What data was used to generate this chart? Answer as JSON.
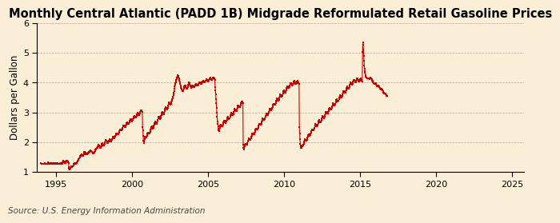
{
  "title": "Monthly Central Atlantic (PADD 1B) Midgrade Reformulated Retail Gasoline Prices",
  "ylabel": "Dollars per Gallon",
  "source": "Source: U.S. Energy Information Administration",
  "background_color": "#faefd6",
  "line_color": "#cc0000",
  "marker": "s",
  "markersize": 1.8,
  "linewidth": 0.8,
  "ylim": [
    1,
    6
  ],
  "yticks": [
    1,
    2,
    3,
    4,
    5,
    6
  ],
  "xlim_start": 1993.75,
  "xlim_end": 2025.75,
  "xticks": [
    1995,
    2000,
    2005,
    2010,
    2015,
    2020,
    2025
  ],
  "title_fontsize": 10.5,
  "ylabel_fontsize": 8.5,
  "source_fontsize": 7.5,
  "tick_fontsize": 8,
  "prices": [
    1.29,
    1.3,
    1.28,
    1.27,
    1.26,
    1.28,
    1.27,
    1.26,
    1.28,
    1.28,
    1.27,
    1.26,
    1.26,
    1.27,
    1.29,
    1.28,
    1.27,
    1.26,
    1.27,
    1.28,
    1.28,
    1.27,
    1.26,
    1.27,
    1.28,
    1.3,
    1.32,
    1.31,
    1.29,
    1.28,
    1.3,
    1.31,
    1.3,
    1.29,
    1.28,
    1.27,
    1.28,
    1.29,
    1.28,
    1.27,
    1.27,
    1.28,
    1.29,
    1.3,
    1.29,
    1.28,
    1.27,
    1.26,
    1.28,
    1.3,
    1.3,
    1.29,
    1.28,
    1.28,
    1.3,
    1.31,
    1.3,
    1.29,
    1.28,
    1.27,
    1.27,
    1.27,
    1.26,
    1.27,
    1.27,
    1.28,
    1.29,
    1.3,
    1.29,
    1.28,
    1.27,
    1.26,
    1.27,
    1.28,
    1.3,
    1.32,
    1.34,
    1.36,
    1.37,
    1.35,
    1.33,
    1.32,
    1.31,
    1.3,
    1.31,
    1.32,
    1.35,
    1.37,
    1.38,
    1.37,
    1.36,
    1.35,
    1.34,
    1.33,
    1.32,
    1.31,
    1.15,
    1.12,
    1.1,
    1.09,
    1.1,
    1.12,
    1.14,
    1.16,
    1.18,
    1.17,
    1.16,
    1.15,
    1.16,
    1.18,
    1.2,
    1.22,
    1.24,
    1.26,
    1.28,
    1.29,
    1.3,
    1.3,
    1.29,
    1.28,
    1.28,
    1.29,
    1.3,
    1.31,
    1.32,
    1.34,
    1.36,
    1.38,
    1.4,
    1.42,
    1.44,
    1.45,
    1.47,
    1.49,
    1.51,
    1.53,
    1.55,
    1.56,
    1.57,
    1.58,
    1.57,
    1.55,
    1.54,
    1.53,
    1.54,
    1.55,
    1.57,
    1.6,
    1.63,
    1.66,
    1.68,
    1.66,
    1.64,
    1.62,
    1.6,
    1.58,
    1.58,
    1.59,
    1.6,
    1.61,
    1.62,
    1.63,
    1.64,
    1.65,
    1.66,
    1.67,
    1.68,
    1.69,
    1.7,
    1.71,
    1.72,
    1.71,
    1.7,
    1.69,
    1.68,
    1.67,
    1.66,
    1.65,
    1.64,
    1.63,
    1.63,
    1.63,
    1.64,
    1.66,
    1.68,
    1.7,
    1.72,
    1.74,
    1.76,
    1.78,
    1.79,
    1.8,
    1.81,
    1.82,
    1.84,
    1.86,
    1.88,
    1.9,
    1.91,
    1.9,
    1.88,
    1.86,
    1.84,
    1.82,
    1.82,
    1.83,
    1.85,
    1.87,
    1.9,
    1.93,
    1.96,
    1.97,
    1.95,
    1.92,
    1.9,
    1.88,
    1.88,
    1.9,
    1.93,
    1.96,
    2.0,
    2.04,
    2.07,
    2.08,
    2.06,
    2.04,
    2.02,
    2.0,
    1.98,
    1.97,
    1.98,
    2.0,
    2.03,
    2.06,
    2.08,
    2.09,
    2.08,
    2.07,
    2.05,
    2.03,
    2.03,
    2.04,
    2.06,
    2.08,
    2.1,
    2.13,
    2.16,
    2.18,
    2.19,
    2.18,
    2.16,
    2.14,
    2.14,
    2.15,
    2.17,
    2.2,
    2.23,
    2.26,
    2.29,
    2.3,
    2.29,
    2.28,
    2.27,
    2.26,
    2.26,
    2.27,
    2.29,
    2.31,
    2.34,
    2.37,
    2.4,
    2.42,
    2.43,
    2.42,
    2.41,
    2.4,
    2.4,
    2.41,
    2.43,
    2.46,
    2.49,
    2.52,
    2.55,
    2.57,
    2.56,
    2.54,
    2.52,
    2.5,
    2.5,
    2.51,
    2.53,
    2.56,
    2.59,
    2.62,
    2.65,
    2.66,
    2.65,
    2.64,
    2.62,
    2.6,
    2.6,
    2.61,
    2.63,
    2.66,
    2.69,
    2.72,
    2.75,
    2.77,
    2.76,
    2.74,
    2.72,
    2.7,
    2.7,
    2.72,
    2.74,
    2.77,
    2.8,
    2.83,
    2.86,
    2.88,
    2.87,
    2.86,
    2.84,
    2.82,
    2.82,
    2.83,
    2.85,
    2.88,
    2.91,
    2.94,
    2.97,
    2.98,
    2.97,
    2.95,
    2.93,
    2.91,
    2.91,
    2.93,
    2.95,
    2.98,
    3.01,
    3.04,
    3.07,
    3.08,
    3.07,
    3.06,
    3.04,
    3.02,
    2.5,
    2.4,
    2.2,
    2.05,
    1.98,
    2.0,
    2.05,
    2.1,
    2.15,
    2.18,
    2.17,
    2.16,
    2.16,
    2.17,
    2.19,
    2.22,
    2.25,
    2.28,
    2.31,
    2.33,
    2.32,
    2.31,
    2.3,
    2.29,
    2.3,
    2.32,
    2.35,
    2.38,
    2.42,
    2.46,
    2.5,
    2.52,
    2.51,
    2.49,
    2.47,
    2.45,
    2.46,
    2.48,
    2.51,
    2.55,
    2.59,
    2.63,
    2.67,
    2.69,
    2.68,
    2.66,
    2.64,
    2.62,
    2.62,
    2.64,
    2.67,
    2.71,
    2.75,
    2.79,
    2.83,
    2.85,
    2.84,
    2.82,
    2.8,
    2.78,
    2.78,
    2.8,
    2.83,
    2.87,
    2.91,
    2.95,
    2.99,
    3.01,
    3.0,
    2.98,
    2.96,
    2.94,
    2.94,
    2.96,
    2.99,
    3.03,
    3.07,
    3.11,
    3.15,
    3.17,
    3.16,
    3.14,
    3.12,
    3.1,
    3.1,
    3.12,
    3.15,
    3.19,
    3.23,
    3.27,
    3.31,
    3.33,
    3.32,
    3.3,
    3.28,
    3.26,
    3.26,
    3.28,
    3.31,
    3.35,
    3.39,
    3.43,
    3.47,
    3.5,
    3.53,
    3.57,
    3.62,
    3.67,
    3.72,
    3.79,
    3.86,
    3.92,
    3.97,
    4.01,
    4.05,
    4.09,
    4.12,
    4.15,
    4.18,
    4.21,
    4.23,
    4.25,
    4.22,
    4.18,
    4.14,
    4.1,
    4.06,
    4.02,
    3.98,
    3.94,
    3.9,
    3.86,
    3.82,
    3.79,
    3.77,
    3.75,
    3.73,
    3.71,
    3.7,
    3.72,
    3.75,
    3.79,
    3.83,
    3.87,
    3.9,
    3.91,
    3.9,
    3.88,
    3.85,
    3.82,
    3.8,
    3.79,
    3.8,
    3.82,
    3.85,
    3.89,
    3.93,
    3.97,
    4.0,
    3.99,
    3.97,
    3.95,
    3.92,
    3.89,
    3.86,
    3.84,
    3.83,
    3.83,
    3.84,
    3.86,
    3.89,
    3.91,
    3.9,
    3.88,
    3.86,
    3.84,
    3.84,
    3.85,
    3.87,
    3.89,
    3.91,
    3.93,
    3.95,
    3.96,
    3.95,
    3.93,
    3.91,
    3.89,
    3.89,
    3.9,
    3.92,
    3.94,
    3.96,
    3.98,
    4.0,
    4.01,
    4.0,
    3.99,
    3.97,
    3.95,
    3.95,
    3.96,
    3.98,
    4.0,
    4.02,
    4.04,
    4.06,
    4.07,
    4.06,
    4.04,
    4.02,
    4.0,
    4.0,
    4.01,
    4.03,
    4.05,
    4.07,
    4.09,
    4.11,
    4.12,
    4.1,
    4.08,
    4.06,
    4.04,
    4.04,
    4.05,
    4.07,
    4.09,
    4.11,
    4.13,
    4.15,
    4.16,
    4.14,
    4.12,
    4.1,
    4.08,
    4.08,
    4.09,
    4.11,
    4.13,
    4.15,
    4.17,
    4.18,
    4.17,
    4.15,
    4.13,
    4.11,
    4.09,
    3.85,
    3.75,
    3.6,
    3.45,
    3.3,
    3.15,
    3.0,
    2.85,
    2.7,
    2.6,
    2.52,
    2.45,
    2.4,
    2.38,
    2.4,
    2.43,
    2.47,
    2.52,
    2.57,
    2.59,
    2.58,
    2.56,
    2.54,
    2.52,
    2.52,
    2.53,
    2.55,
    2.58,
    2.62,
    2.66,
    2.7,
    2.72,
    2.71,
    2.69,
    2.67,
    2.65,
    2.65,
    2.66,
    2.68,
    2.71,
    2.75,
    2.79,
    2.83,
    2.85,
    2.84,
    2.82,
    2.8,
    2.78,
    2.78,
    2.79,
    2.81,
    2.84,
    2.88,
    2.92,
    2.96,
    2.98,
    2.97,
    2.95,
    2.93,
    2.91,
    2.91,
    2.92,
    2.94,
    2.97,
    3.01,
    3.05,
    3.09,
    3.11,
    3.1,
    3.08,
    3.06,
    3.04,
    3.04,
    3.05,
    3.07,
    3.1,
    3.14,
    3.18,
    3.22,
    3.24,
    3.23,
    3.21,
    3.19,
    3.17,
    3.17,
    3.18,
    3.2,
    3.23,
    3.27,
    3.31,
    3.35,
    3.37,
    3.36,
    3.34,
    3.32,
    3.3,
    1.92,
    1.8,
    1.75,
    1.78,
    1.82,
    1.87,
    1.92,
    1.95,
    1.94,
    1.93,
    1.92,
    1.91,
    1.91,
    1.92,
    1.94,
    1.97,
    2.01,
    2.05,
    2.09,
    2.12,
    2.11,
    2.1,
    2.09,
    2.08,
    2.08,
    2.09,
    2.11,
    2.14,
    2.18,
    2.22,
    2.26,
    2.29,
    2.28,
    2.27,
    2.26,
    2.25,
    2.25,
    2.26,
    2.28,
    2.31,
    2.35,
    2.39,
    2.43,
    2.46,
    2.45,
    2.44,
    2.43,
    2.42,
    2.42,
    2.43,
    2.45,
    2.48,
    2.52,
    2.56,
    2.6,
    2.62,
    2.61,
    2.6,
    2.59,
    2.58,
    2.58,
    2.59,
    2.61,
    2.64,
    2.68,
    2.72,
    2.76,
    2.79,
    2.78,
    2.77,
    2.76,
    2.75,
    2.75,
    2.76,
    2.78,
    2.81,
    2.85,
    2.89,
    2.93,
    2.96,
    2.95,
    2.94,
    2.93,
    2.92,
    2.92,
    2.93,
    2.95,
    2.98,
    3.02,
    3.06,
    3.1,
    3.12,
    3.11,
    3.1,
    3.09,
    3.08,
    3.08,
    3.09,
    3.11,
    3.14,
    3.18,
    3.22,
    3.26,
    3.29,
    3.28,
    3.27,
    3.26,
    3.25,
    3.25,
    3.26,
    3.28,
    3.31,
    3.35,
    3.39,
    3.43,
    3.46,
    3.45,
    3.43,
    3.41,
    3.39,
    3.39,
    3.4,
    3.42,
    3.45,
    3.49,
    3.53,
    3.57,
    3.6,
    3.59,
    3.57,
    3.55,
    3.53,
    3.53,
    3.54,
    3.56,
    3.59,
    3.63,
    3.67,
    3.71,
    3.74,
    3.73,
    3.71,
    3.69,
    3.67,
    3.67,
    3.68,
    3.7,
    3.73,
    3.77,
    3.81,
    3.85,
    3.88,
    3.87,
    3.85,
    3.83,
    3.81,
    3.81,
    3.82,
    3.84,
    3.87,
    3.91,
    3.95,
    3.98,
    3.99,
    3.97,
    3.95,
    3.93,
    3.91,
    3.91,
    3.92,
    3.94,
    3.97,
    4.0,
    4.03,
    4.05,
    4.04,
    4.02,
    4.0,
    3.98,
    3.96,
    3.96,
    3.97,
    3.99,
    4.01,
    4.03,
    4.05,
    4.06,
    4.04,
    4.02,
    4.0,
    3.98,
    3.96,
    2.5,
    2.3,
    2.1,
    1.95,
    1.88,
    1.85,
    1.82,
    1.8,
    1.82,
    1.84,
    1.86,
    1.88,
    1.88,
    1.89,
    1.91,
    1.94,
    1.98,
    2.02,
    2.06,
    2.09,
    2.08,
    2.07,
    2.06,
    2.05,
    2.05,
    2.06,
    2.08,
    2.11,
    2.15,
    2.19,
    2.23,
    2.26,
    2.25,
    2.24,
    2.23,
    2.22,
    2.22,
    2.23,
    2.25,
    2.28,
    2.32,
    2.36,
    2.4,
    2.43,
    2.42,
    2.41,
    2.4,
    2.39,
    2.39,
    2.4,
    2.42,
    2.45,
    2.49,
    2.53,
    2.57,
    2.6,
    2.59,
    2.57,
    2.55,
    2.53,
    2.53,
    2.54,
    2.56,
    2.59,
    2.63,
    2.67,
    2.71,
    2.74,
    2.73,
    2.71,
    2.69,
    2.67,
    2.67,
    2.68,
    2.7,
    2.73,
    2.77,
    2.81,
    2.85,
    2.88,
    2.87,
    2.85,
    2.83,
    2.81,
    2.81,
    2.82,
    2.84,
    2.87,
    2.91,
    2.95,
    2.99,
    3.02,
    3.01,
    2.99,
    2.97,
    2.95,
    2.95,
    2.96,
    2.98,
    3.01,
    3.05,
    3.09,
    3.13,
    3.16,
    3.15,
    3.13,
    3.11,
    3.09,
    3.09,
    3.1,
    3.12,
    3.15,
    3.19,
    3.23,
    3.27,
    3.3,
    3.29,
    3.27,
    3.25,
    3.23,
    3.23,
    3.24,
    3.26,
    3.29,
    3.33,
    3.37,
    3.41,
    3.44,
    3.43,
    3.41,
    3.39,
    3.37,
    3.37,
    3.38,
    3.4,
    3.43,
    3.47,
    3.51,
    3.55,
    3.58,
    3.57,
    3.55,
    3.53,
    3.51,
    3.51,
    3.52,
    3.54,
    3.57,
    3.61,
    3.65,
    3.69,
    3.72,
    3.71,
    3.69,
    3.67,
    3.65,
    3.65,
    3.66,
    3.68,
    3.71,
    3.75,
    3.79,
    3.83,
    3.86,
    3.85,
    3.83,
    3.81,
    3.79,
    3.79,
    3.8,
    3.82,
    3.85,
    3.89,
    3.93,
    3.97,
    4.0,
    3.99,
    3.97,
    3.95,
    3.93,
    3.93,
    3.94,
    3.96,
    3.99,
    4.03,
    4.07,
    4.1,
    4.09,
    4.07,
    4.05,
    4.03,
    4.01,
    4.01,
    4.02,
    4.04,
    4.07,
    4.1,
    4.13,
    4.14,
    4.12,
    4.1,
    4.08,
    4.06,
    4.04,
    4.04,
    4.05,
    4.07,
    4.09,
    4.11,
    4.13,
    4.14,
    4.12,
    4.1,
    4.08,
    4.06,
    4.04,
    5.02,
    5.35,
    5.28,
    5.1,
    4.9,
    4.72,
    4.58,
    4.45,
    4.38,
    4.32,
    4.25,
    4.2,
    4.18,
    4.17,
    4.16,
    4.15,
    4.14,
    4.13,
    4.13,
    4.14,
    4.15,
    4.14,
    4.13,
    4.12,
    4.12,
    4.13,
    4.14,
    4.15,
    4.16,
    4.15,
    4.13,
    4.11,
    4.09,
    4.07,
    4.05,
    4.03,
    4.0,
    3.98,
    3.97,
    3.97,
    3.96,
    3.96,
    3.96,
    3.97,
    3.98,
    3.97,
    3.95,
    3.93,
    3.9,
    3.88,
    3.87,
    3.87,
    3.88,
    3.9,
    3.91,
    3.9,
    3.88,
    3.86,
    3.84,
    3.82,
    3.8,
    3.78,
    3.77,
    3.77,
    3.78,
    3.8,
    3.79,
    3.77,
    3.75,
    3.73,
    3.71,
    3.69,
    3.67,
    3.65,
    3.64,
    3.63,
    3.62,
    3.62,
    3.63,
    3.62,
    3.6,
    3.58,
    3.56,
    3.54
  ],
  "start_year": 1994,
  "start_month": 1,
  "data_frequency": 52
}
